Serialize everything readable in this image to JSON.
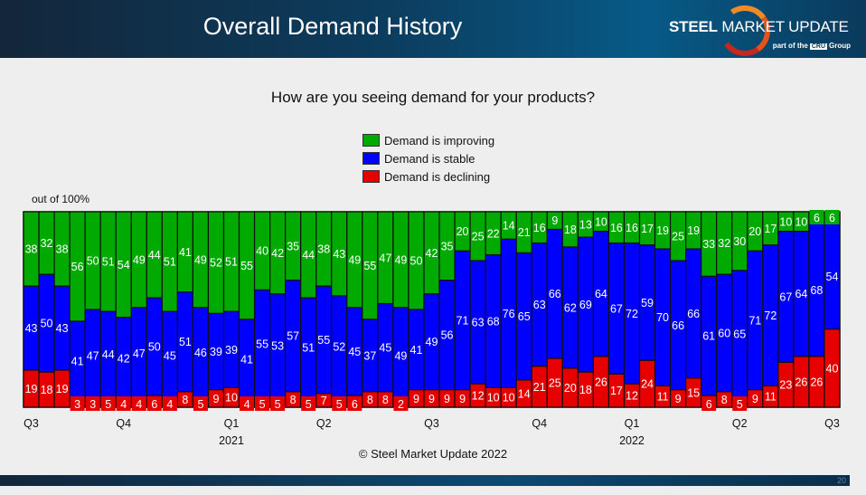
{
  "header": {
    "title": "Overall Demand History",
    "logo_bold": "STEEL",
    "logo_rest": " MARKET UPDATE",
    "logo_sub_before": "part of the",
    "logo_sub_brand": "CRU",
    "logo_sub_after": "Group"
  },
  "footer": {
    "copyright": "© Steel Market Update 2022",
    "page_number": "20"
  },
  "colors": {
    "improving": "#00aa00",
    "stable": "#0000ff",
    "declining": "#e60000"
  },
  "chart_data": {
    "type": "bar",
    "stacked": true,
    "title": "How are you seeing demand for your products?",
    "ylabel": "out of 100%",
    "ylim": [
      0,
      100
    ],
    "legend_position": "top-center",
    "grid": false,
    "series": [
      {
        "name": "Demand is improving",
        "color": "#00aa00",
        "values": [
          38,
          32,
          38,
          56,
          50,
          51,
          54,
          49,
          44,
          51,
          41,
          49,
          52,
          51,
          55,
          40,
          42,
          35,
          44,
          38,
          43,
          49,
          55,
          47,
          49,
          50,
          42,
          35,
          20,
          25,
          22,
          14,
          21,
          16,
          9,
          18,
          13,
          10,
          16,
          16,
          17,
          19,
          25,
          19,
          33,
          32,
          30,
          20,
          17,
          10,
          10,
          6,
          6
        ]
      },
      {
        "name": "Demand is stable",
        "color": "#0000ff",
        "values": [
          43,
          50,
          43,
          41,
          47,
          44,
          42,
          47,
          50,
          45,
          51,
          46,
          39,
          39,
          41,
          55,
          53,
          57,
          51,
          55,
          52,
          45,
          37,
          45,
          49,
          41,
          49,
          56,
          71,
          63,
          68,
          76,
          65,
          63,
          66,
          62,
          69,
          64,
          67,
          72,
          59,
          70,
          66,
          66,
          61,
          60,
          65,
          71,
          72,
          67,
          64,
          68,
          54
        ]
      },
      {
        "name": "Demand is declining",
        "color": "#e60000",
        "values": [
          19,
          18,
          19,
          3,
          3,
          5,
          4,
          4,
          6,
          4,
          8,
          5,
          9,
          10,
          4,
          5,
          5,
          8,
          5,
          7,
          5,
          6,
          8,
          8,
          2,
          9,
          9,
          9,
          9,
          12,
          10,
          10,
          14,
          21,
          25,
          20,
          18,
          26,
          17,
          12,
          24,
          11,
          9,
          15,
          6,
          8,
          5,
          9,
          11,
          23,
          26,
          26,
          40
        ]
      }
    ],
    "x_ticks": [
      {
        "index": 0,
        "label": "Q3",
        "year": ""
      },
      {
        "index": 6,
        "label": "Q4",
        "year": ""
      },
      {
        "index": 13,
        "label": "Q1",
        "year": "2021"
      },
      {
        "index": 19,
        "label": "Q2",
        "year": ""
      },
      {
        "index": 26,
        "label": "Q3",
        "year": ""
      },
      {
        "index": 33,
        "label": "Q4",
        "year": ""
      },
      {
        "index": 39,
        "label": "Q1",
        "year": "2022"
      },
      {
        "index": 46,
        "label": "Q2",
        "year": ""
      },
      {
        "index": 52,
        "label": "Q3",
        "year": ""
      }
    ]
  }
}
